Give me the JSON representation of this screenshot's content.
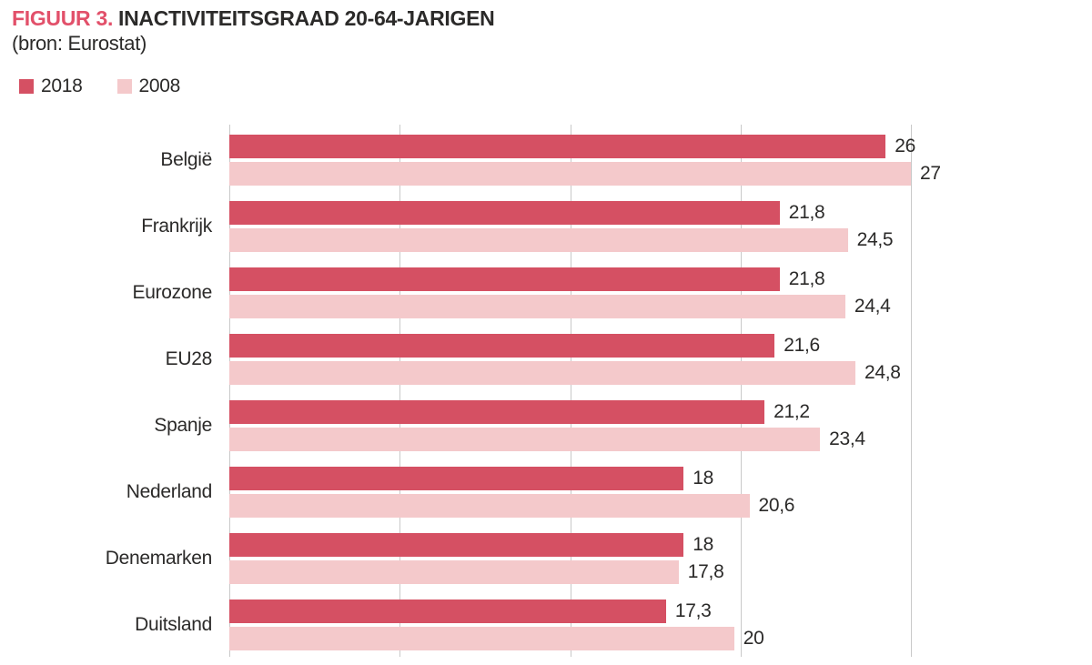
{
  "title": {
    "prefix": "FIGUUR 3.",
    "main": "INACTIVITEITSGRAAD 20-64-JARIGEN",
    "source": "(bron: Eurostat)"
  },
  "legend": {
    "items": [
      {
        "label": "2018",
        "color": "#d55063"
      },
      {
        "label": "2008",
        "color": "#f4c9cb"
      }
    ]
  },
  "colors": {
    "series_2018": "#d55063",
    "series_2008": "#f4c9cb",
    "title_accent": "#e2506a",
    "text": "#2b2a29",
    "gridline": "#c9c9c9",
    "background": "#ffffff"
  },
  "chart_data": {
    "type": "bar",
    "orientation": "horizontal",
    "title": "FIGUUR 3. INACTIVITEITSGRAAD 20-64-JARIGEN",
    "subtitle": "(bron: Eurostat)",
    "categories": [
      "België",
      "Frankrijk",
      "Eurozone",
      "EU28",
      "Spanje",
      "Nederland",
      "Denemarken",
      "Duitsland"
    ],
    "series": [
      {
        "name": "2018",
        "values": [
          26,
          21.8,
          21.8,
          21.6,
          21.2,
          18,
          18,
          17.3
        ],
        "labels": [
          "26",
          "21,8",
          "21,8",
          "21,6",
          "21,2",
          "18",
          "18",
          "17,3"
        ]
      },
      {
        "name": "2008",
        "values": [
          27,
          24.5,
          24.4,
          24.8,
          23.4,
          20.6,
          17.8,
          20
        ],
        "labels": [
          "27",
          "24,5",
          "24,4",
          "24,8",
          "23,4",
          "20,6",
          "17,8",
          "20"
        ]
      }
    ],
    "xlim": [
      0,
      27
    ],
    "gridline_count": 5,
    "grid": "vertical-only",
    "value_labels": "outside-end",
    "legend_position": "top-left"
  }
}
